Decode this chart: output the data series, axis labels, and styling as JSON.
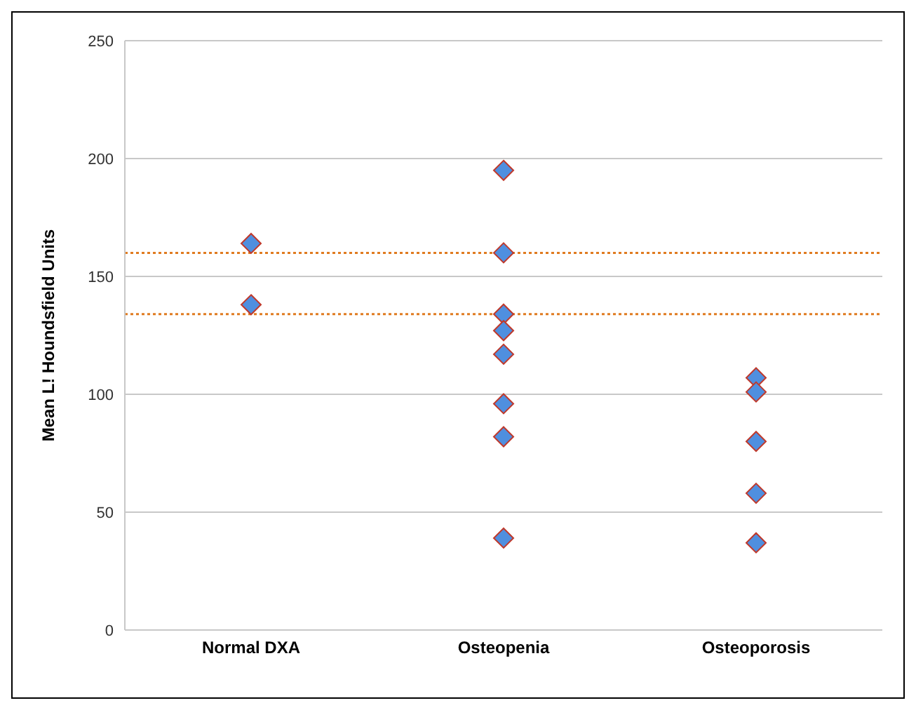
{
  "chart_data": {
    "type": "scatter",
    "ylabel": "Mean L! Houndsfield Units",
    "categories": [
      "Normal DXA",
      "Osteopenia",
      "Osteoporosis"
    ],
    "series": [
      {
        "color": "#4f8fdf",
        "x": [
          "Normal DXA",
          "Normal DXA",
          "Osteopenia",
          "Osteopenia",
          "Osteopenia",
          "Osteopenia",
          "Osteopenia",
          "Osteopenia",
          "Osteopenia",
          "Osteopenia",
          "Osteoporosis",
          "Osteoporosis",
          "Osteoporosis",
          "Osteoporosis",
          "Osteoporosis"
        ],
        "values": [
          164,
          138,
          195,
          160,
          134,
          127,
          117,
          96,
          82,
          39,
          107,
          101,
          80,
          58,
          37
        ]
      }
    ],
    "ylim": [
      0,
      250
    ],
    "yticks": [
      0,
      50,
      100,
      150,
      200,
      250
    ],
    "grid": "y",
    "marker": "diamond",
    "ref_lines": [
      {
        "axis": "y",
        "value": 160,
        "color": "#e07b20",
        "line_style": "dotted"
      },
      {
        "axis": "y",
        "value": 134,
        "color": "#e07b20",
        "line_style": "dotted"
      }
    ]
  }
}
